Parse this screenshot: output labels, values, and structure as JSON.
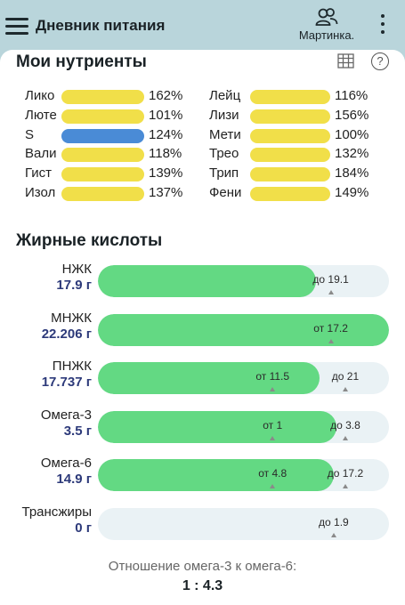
{
  "header": {
    "title": "Дневник питания",
    "profile_name": "Мартинка."
  },
  "nutrients": {
    "title": "Мои нутриенты",
    "left": [
      {
        "name": "Лико",
        "pct": "162%",
        "color": "#f1df49"
      },
      {
        "name": "Люте",
        "pct": "101%",
        "color": "#f1df49"
      },
      {
        "name": "S",
        "pct": "124%",
        "color": "#4a8bd6"
      },
      {
        "name": "Вали",
        "pct": "118%",
        "color": "#f1df49"
      },
      {
        "name": "Гист",
        "pct": "139%",
        "color": "#f1df49"
      },
      {
        "name": "Изол",
        "pct": "137%",
        "color": "#f1df49"
      }
    ],
    "right": [
      {
        "name": "Лейц",
        "pct": "116%",
        "color": "#f1df49"
      },
      {
        "name": "Лизи",
        "pct": "156%",
        "color": "#f1df49"
      },
      {
        "name": "Мети",
        "pct": "100%",
        "color": "#f1df49"
      },
      {
        "name": "Трео",
        "pct": "132%",
        "color": "#f1df49"
      },
      {
        "name": "Трип",
        "pct": "184%",
        "color": "#f1df49"
      },
      {
        "name": "Фени",
        "pct": "149%",
        "color": "#f1df49"
      }
    ]
  },
  "fatty_acids": {
    "title": "Жирные кислоты",
    "rows": [
      {
        "name": "НЖК",
        "value": "17.9 г",
        "fill": 0.75,
        "marks": [
          {
            "label": "до 19.1",
            "pos": 0.8
          }
        ]
      },
      {
        "name": "МНЖК",
        "value": "22.206 г",
        "fill": 1.0,
        "marks": [
          {
            "label": "от 17.2",
            "pos": 0.8
          }
        ]
      },
      {
        "name": "ПНЖК",
        "value": "17.737 г",
        "fill": 0.76,
        "marks": [
          {
            "label": "от 11.5",
            "pos": 0.6
          },
          {
            "label": "до 21",
            "pos": 0.85
          }
        ]
      },
      {
        "name": "Омега-3",
        "value": "3.5 г",
        "fill": 0.82,
        "marks": [
          {
            "label": "от 1",
            "pos": 0.6
          },
          {
            "label": "до 3.8",
            "pos": 0.85
          }
        ]
      },
      {
        "name": "Омега-6",
        "value": "14.9 г",
        "fill": 0.81,
        "marks": [
          {
            "label": "от 4.8",
            "pos": 0.6
          },
          {
            "label": "до 17.2",
            "pos": 0.85
          }
        ]
      },
      {
        "name": "Трансжиры",
        "value": "0 г",
        "fill": 0.0,
        "marks": [
          {
            "label": "до 1.9",
            "pos": 0.81
          }
        ]
      }
    ]
  },
  "ratio": {
    "label": "Отношение омега-3 к омега-6:",
    "value": "1 : 4.3"
  },
  "colors": {
    "header_bg": "#b9d5db",
    "fatty_fill": "#63d983",
    "track": "#eaf2f5",
    "value_text": "#2d3a7a"
  }
}
